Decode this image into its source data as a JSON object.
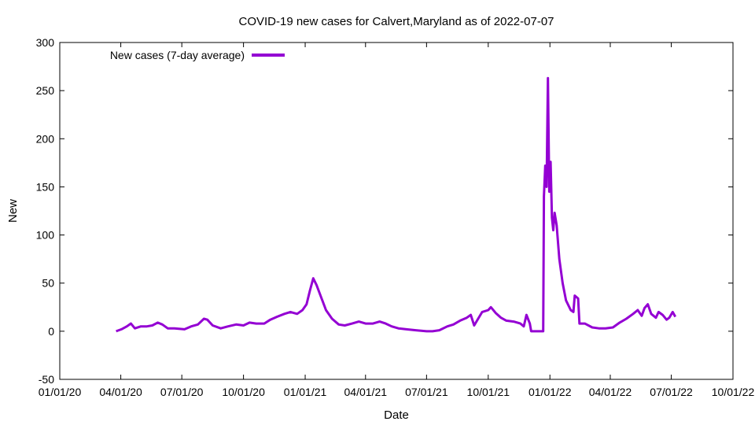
{
  "chart_data": {
    "type": "line",
    "title": "COVID-19 new cases for Calvert,Maryland as of 2022-07-07",
    "xlabel": "Date",
    "ylabel": "New",
    "xlim": [
      "2020-01-01",
      "2022-10-01"
    ],
    "ylim": [
      -50,
      300
    ],
    "y_ticks": [
      -50,
      0,
      50,
      100,
      150,
      200,
      250,
      300
    ],
    "x_ticks": [
      {
        "date": "2020-01-01",
        "label": "01/01/20"
      },
      {
        "date": "2020-04-01",
        "label": "04/01/20"
      },
      {
        "date": "2020-07-01",
        "label": "07/01/20"
      },
      {
        "date": "2020-10-01",
        "label": "10/01/20"
      },
      {
        "date": "2021-01-01",
        "label": "01/01/21"
      },
      {
        "date": "2021-04-01",
        "label": "04/01/21"
      },
      {
        "date": "2021-07-01",
        "label": "07/01/21"
      },
      {
        "date": "2021-10-01",
        "label": "10/01/21"
      },
      {
        "date": "2022-01-01",
        "label": "01/01/22"
      },
      {
        "date": "2022-04-01",
        "label": "04/01/22"
      },
      {
        "date": "2022-07-01",
        "label": "07/01/22"
      },
      {
        "date": "2022-10-01",
        "label": "10/01/22"
      }
    ],
    "grid": false,
    "legend_position": "top-left",
    "series": [
      {
        "name": "New cases (7-day average)",
        "color": "#9400d3",
        "points": [
          [
            "2020-03-25",
            0
          ],
          [
            "2020-04-02",
            2
          ],
          [
            "2020-04-10",
            5
          ],
          [
            "2020-04-16",
            8
          ],
          [
            "2020-04-22",
            3
          ],
          [
            "2020-05-01",
            5
          ],
          [
            "2020-05-10",
            5
          ],
          [
            "2020-05-18",
            6
          ],
          [
            "2020-05-26",
            9
          ],
          [
            "2020-06-02",
            7
          ],
          [
            "2020-06-10",
            3
          ],
          [
            "2020-06-20",
            3
          ],
          [
            "2020-07-05",
            2
          ],
          [
            "2020-07-15",
            5
          ],
          [
            "2020-07-25",
            7
          ],
          [
            "2020-08-03",
            13
          ],
          [
            "2020-08-08",
            12
          ],
          [
            "2020-08-16",
            6
          ],
          [
            "2020-08-28",
            3
          ],
          [
            "2020-09-08",
            5
          ],
          [
            "2020-09-20",
            7
          ],
          [
            "2020-10-01",
            6
          ],
          [
            "2020-10-10",
            9
          ],
          [
            "2020-10-20",
            8
          ],
          [
            "2020-11-01",
            8
          ],
          [
            "2020-11-10",
            12
          ],
          [
            "2020-11-20",
            15
          ],
          [
            "2020-12-01",
            18
          ],
          [
            "2020-12-10",
            20
          ],
          [
            "2020-12-20",
            18
          ],
          [
            "2020-12-28",
            22
          ],
          [
            "2021-01-03",
            28
          ],
          [
            "2021-01-08",
            42
          ],
          [
            "2021-01-13",
            55
          ],
          [
            "2021-01-18",
            48
          ],
          [
            "2021-01-25",
            35
          ],
          [
            "2021-02-01",
            22
          ],
          [
            "2021-02-10",
            13
          ],
          [
            "2021-02-20",
            7
          ],
          [
            "2021-03-01",
            6
          ],
          [
            "2021-03-12",
            8
          ],
          [
            "2021-03-22",
            10
          ],
          [
            "2021-04-01",
            8
          ],
          [
            "2021-04-12",
            8
          ],
          [
            "2021-04-22",
            10
          ],
          [
            "2021-05-01",
            8
          ],
          [
            "2021-05-10",
            5
          ],
          [
            "2021-05-20",
            3
          ],
          [
            "2021-06-01",
            2
          ],
          [
            "2021-06-15",
            1
          ],
          [
            "2021-07-01",
            0
          ],
          [
            "2021-07-10",
            0
          ],
          [
            "2021-07-20",
            1
          ],
          [
            "2021-08-01",
            5
          ],
          [
            "2021-08-10",
            7
          ],
          [
            "2021-08-20",
            11
          ],
          [
            "2021-08-30",
            14
          ],
          [
            "2021-09-05",
            17
          ],
          [
            "2021-09-10",
            6
          ],
          [
            "2021-09-15",
            12
          ],
          [
            "2021-09-22",
            20
          ],
          [
            "2021-10-01",
            22
          ],
          [
            "2021-10-05",
            25
          ],
          [
            "2021-10-12",
            19
          ],
          [
            "2021-10-20",
            14
          ],
          [
            "2021-10-28",
            11
          ],
          [
            "2021-11-08",
            10
          ],
          [
            "2021-11-18",
            8
          ],
          [
            "2021-11-23",
            5
          ],
          [
            "2021-11-27",
            17
          ],
          [
            "2021-12-02",
            8
          ],
          [
            "2021-12-04",
            0
          ],
          [
            "2021-12-22",
            0
          ],
          [
            "2021-12-23",
            140
          ],
          [
            "2021-12-25",
            172
          ],
          [
            "2021-12-27",
            150
          ],
          [
            "2021-12-29",
            263
          ],
          [
            "2021-12-31",
            145
          ],
          [
            "2022-01-02",
            176
          ],
          [
            "2022-01-04",
            118
          ],
          [
            "2022-01-06",
            105
          ],
          [
            "2022-01-08",
            123
          ],
          [
            "2022-01-11",
            110
          ],
          [
            "2022-01-15",
            75
          ],
          [
            "2022-01-20",
            50
          ],
          [
            "2022-01-25",
            32
          ],
          [
            "2022-02-01",
            22
          ],
          [
            "2022-02-05",
            20
          ],
          [
            "2022-02-07",
            37
          ],
          [
            "2022-02-12",
            34
          ],
          [
            "2022-02-14",
            8
          ],
          [
            "2022-02-22",
            8
          ],
          [
            "2022-03-05",
            4
          ],
          [
            "2022-03-15",
            3
          ],
          [
            "2022-03-25",
            3
          ],
          [
            "2022-04-05",
            4
          ],
          [
            "2022-04-15",
            9
          ],
          [
            "2022-04-25",
            13
          ],
          [
            "2022-05-05",
            18
          ],
          [
            "2022-05-12",
            22
          ],
          [
            "2022-05-18",
            16
          ],
          [
            "2022-05-22",
            24
          ],
          [
            "2022-05-27",
            28
          ],
          [
            "2022-06-01",
            18
          ],
          [
            "2022-06-08",
            14
          ],
          [
            "2022-06-12",
            20
          ],
          [
            "2022-06-18",
            17
          ],
          [
            "2022-06-24",
            12
          ],
          [
            "2022-06-28",
            14
          ],
          [
            "2022-07-03",
            20
          ],
          [
            "2022-07-07",
            15
          ]
        ]
      }
    ]
  }
}
